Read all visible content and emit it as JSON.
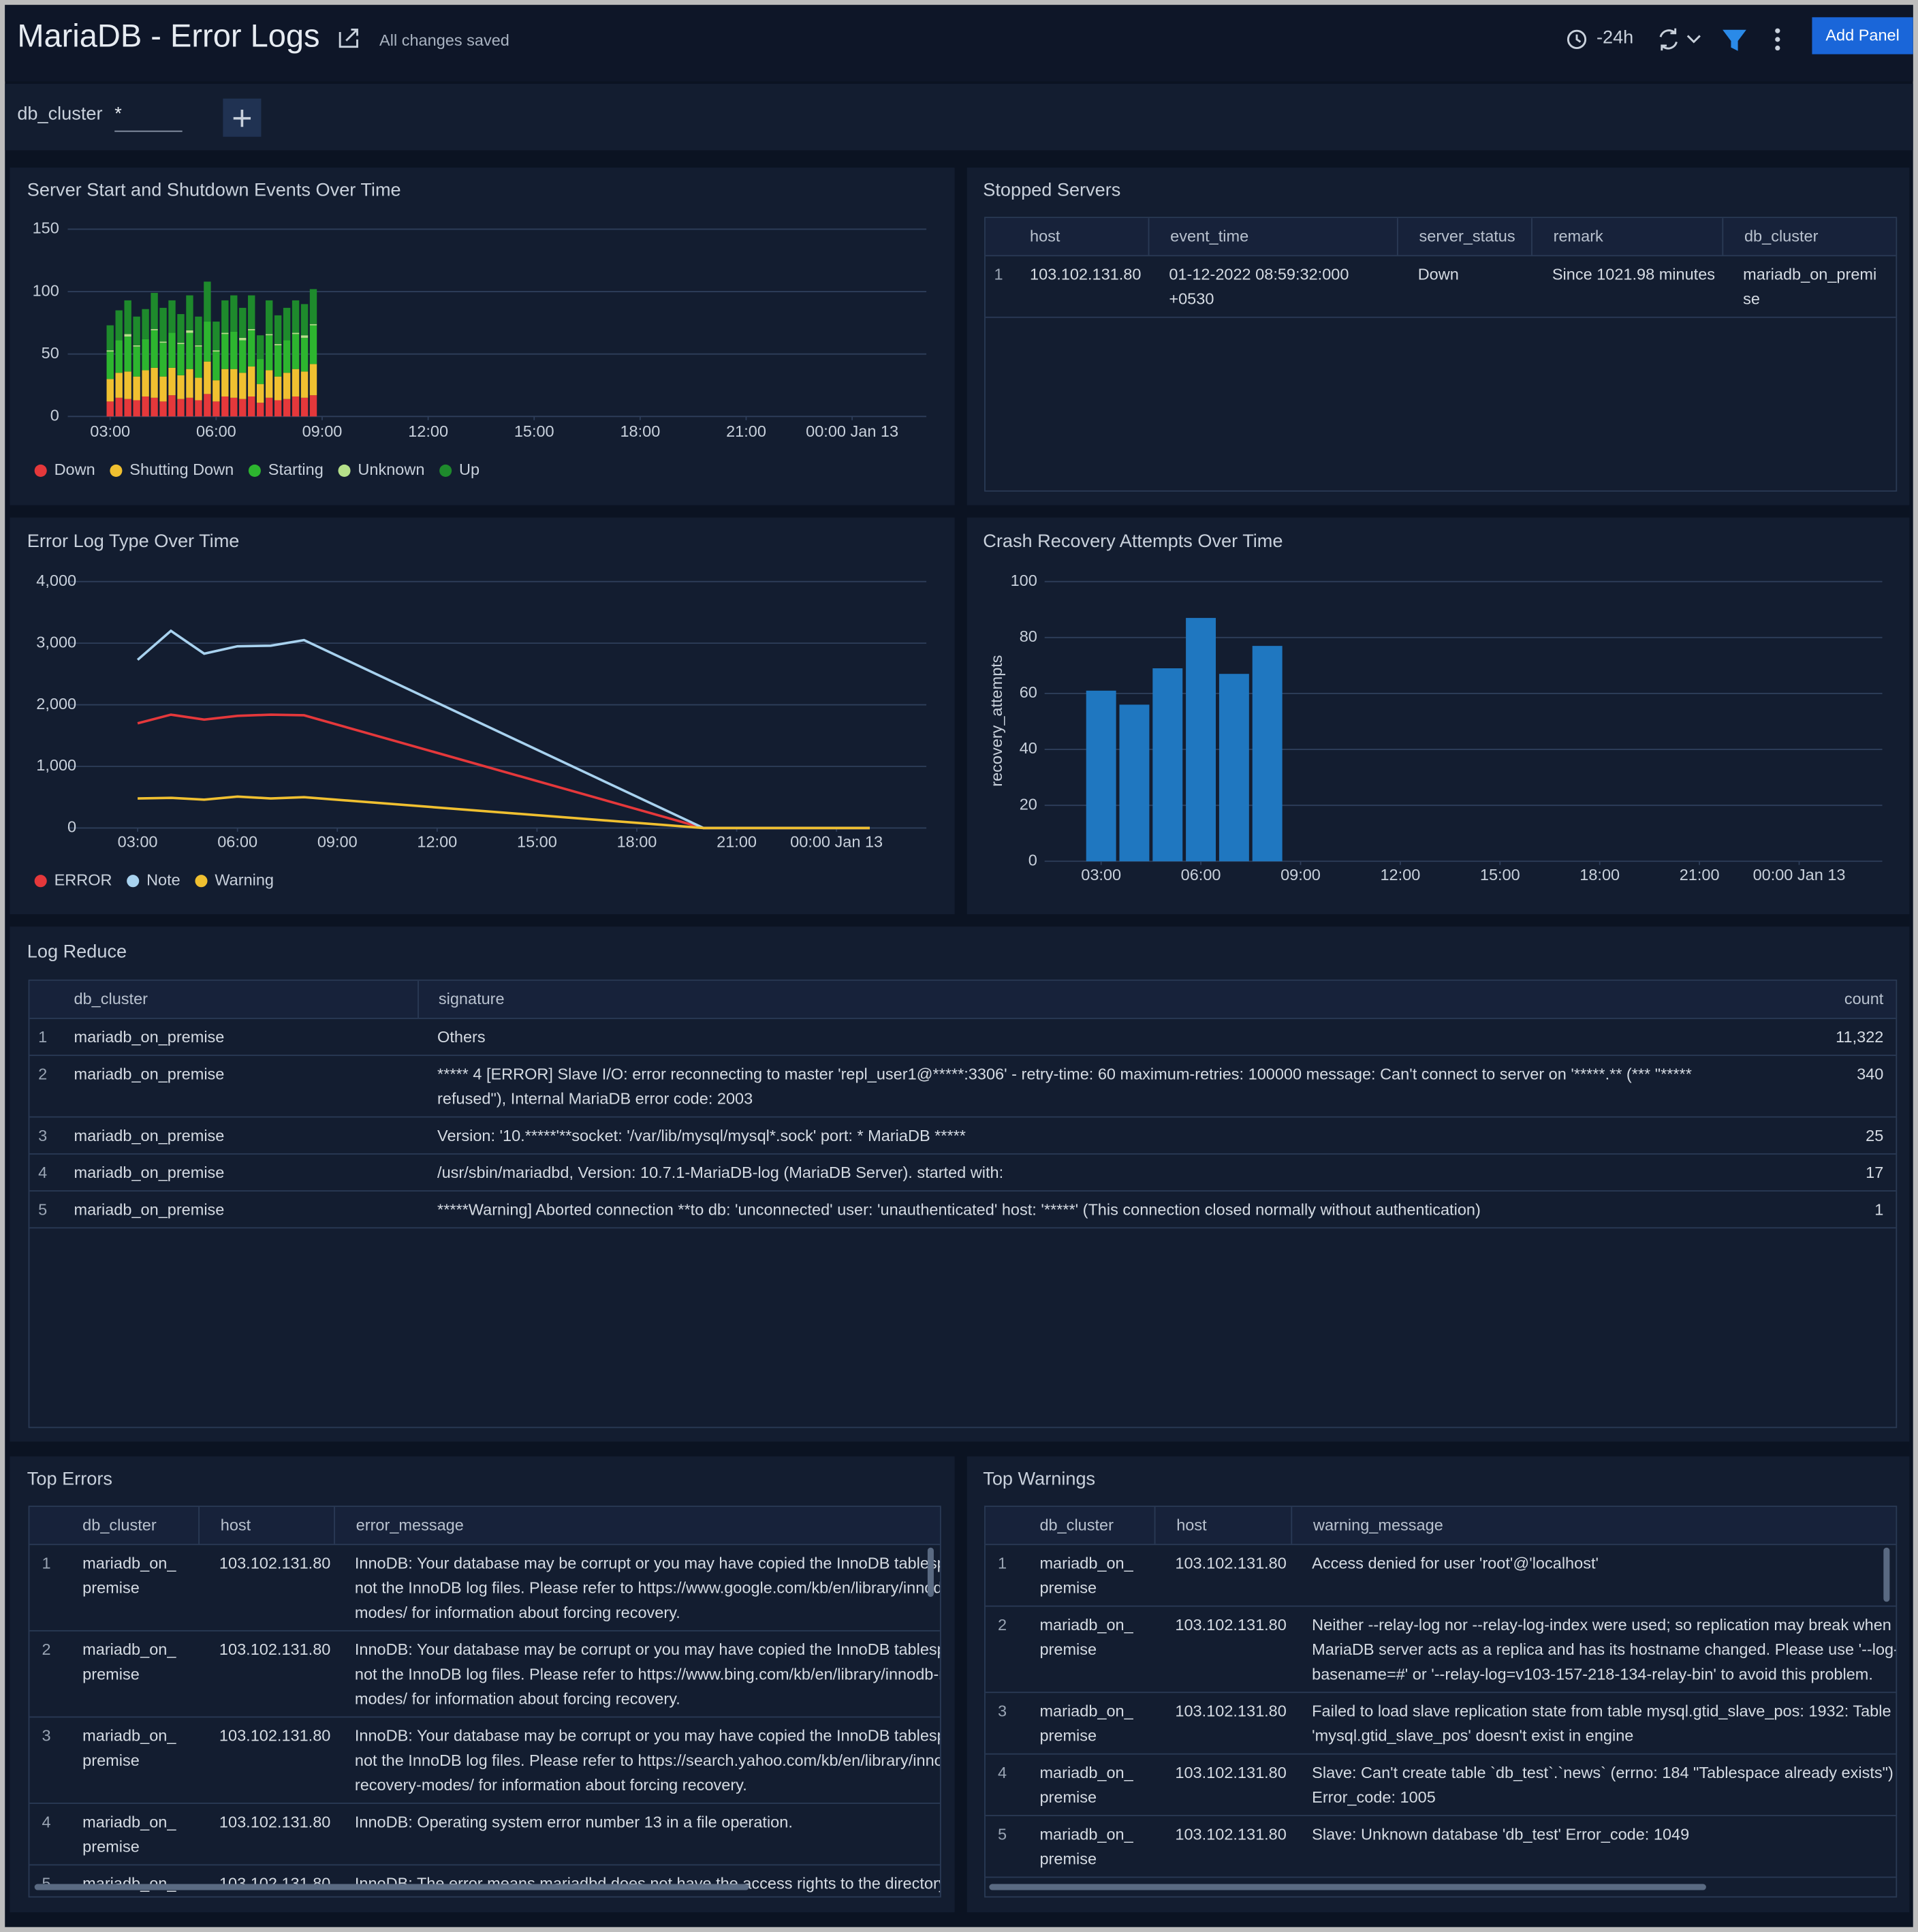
{
  "header": {
    "title": "MariaDB - Error Logs",
    "status": "All changes saved",
    "time_range": "-24h",
    "add_panel": "Add Panel"
  },
  "filters": [
    {
      "name": "db_cluster",
      "value": "*"
    }
  ],
  "panels": [
    {
      "title": "Server Start and Shutdown Events Over Time",
      "chart_data": {
        "type": "bar",
        "stacked": true,
        "grid": true,
        "legend": "bottom",
        "x": [
          3,
          3.25,
          3.5,
          3.75,
          4,
          4.25,
          4.5,
          4.75,
          5,
          5.25,
          5.5,
          5.75,
          6,
          6.25,
          6.5,
          6.75,
          7,
          7.25,
          7.5,
          7.75,
          8,
          8.25,
          8.5,
          8.75
        ],
        "xlim": [
          1.8,
          26.1
        ],
        "xticks": [
          {
            "value": 3,
            "label": "03:00"
          },
          {
            "value": 6,
            "label": "06:00"
          },
          {
            "value": 9,
            "label": "09:00"
          },
          {
            "value": 12,
            "label": "12:00"
          },
          {
            "value": 15,
            "label": "15:00"
          },
          {
            "value": 18,
            "label": "18:00"
          },
          {
            "value": 21,
            "label": "21:00"
          },
          {
            "value": 24,
            "label": "00:00 Jan 13"
          }
        ],
        "ylim": [
          0,
          150
        ],
        "yticks": [
          0,
          50,
          100,
          150
        ],
        "series": [
          {
            "name": "Down",
            "color": "#e5383b",
            "values": [
              12,
              15,
              14,
              13,
              16,
              15,
              12,
              17,
              14,
              15,
              13,
              18,
              12,
              16,
              15,
              14,
              16,
              11,
              15,
              13,
              14,
              16,
              15,
              17
            ]
          },
          {
            "name": "Shutting Down",
            "color": "#f0c030",
            "values": [
              18,
              20,
              22,
              19,
              21,
              24,
              20,
              22,
              19,
              23,
              18,
              26,
              17,
              22,
              23,
              21,
              24,
              15,
              22,
              19,
              21,
              22,
              21,
              25
            ]
          },
          {
            "name": "Starting",
            "color": "#2db52f",
            "values": [
              22,
              26,
              28,
              24,
              25,
              30,
              27,
              28,
              25,
              29,
              25,
              32,
              23,
              28,
              30,
              26,
              29,
              20,
              28,
              25,
              26,
              28,
              27,
              31
            ]
          },
          {
            "name": "Unknown",
            "color": "#b5e08a",
            "values": [
              1,
              0,
              2,
              1,
              0,
              1,
              1,
              0,
              1,
              2,
              1,
              0,
              1,
              1,
              0,
              2,
              1,
              0,
              1,
              1,
              0,
              1,
              2,
              1
            ]
          },
          {
            "name": "Up",
            "color": "#1e8a2c",
            "values": [
              20,
              24,
              27,
              23,
              24,
              29,
              27,
              26,
              23,
              28,
              23,
              32,
              23,
              26,
              29,
              24,
              27,
              19,
              27,
              23,
              26,
              26,
              25,
              28
            ]
          }
        ]
      }
    },
    {
      "title": "Stopped Servers",
      "table": {
        "columns": [
          "host",
          "event_time",
          "server_status",
          "remark",
          "db_cluster"
        ],
        "rows": [
          {
            "n": 1,
            "cells": [
              "103.102.131.80",
              "01-12-2022 08:59:32:000 +0530",
              "Down",
              "Since 1021.98 minutes",
              "mariadb_on_premise"
            ]
          }
        ]
      }
    },
    {
      "title": "Error Log Type Over Time",
      "chart_data": {
        "type": "line",
        "grid": true,
        "legend": "bottom",
        "x": [
          3,
          4,
          5,
          6,
          7,
          8,
          20,
          25
        ],
        "xlim": [
          0.9,
          26.7
        ],
        "xticks": [
          {
            "value": 3,
            "label": "03:00"
          },
          {
            "value": 6,
            "label": "06:00"
          },
          {
            "value": 9,
            "label": "09:00"
          },
          {
            "value": 12,
            "label": "12:00"
          },
          {
            "value": 15,
            "label": "15:00"
          },
          {
            "value": 18,
            "label": "18:00"
          },
          {
            "value": 21,
            "label": "21:00"
          },
          {
            "value": 24,
            "label": "00:00 Jan 13"
          }
        ],
        "ylim": [
          0,
          4000
        ],
        "yticks": [
          0,
          {
            "value": 1000,
            "label": "1,000"
          },
          {
            "value": 2000,
            "label": "2,000"
          },
          {
            "value": 3000,
            "label": "3,000"
          },
          {
            "value": 4000,
            "label": "4,000"
          }
        ],
        "series": [
          {
            "name": "ERROR",
            "color": "#e5383b",
            "values": [
              1700,
              1840,
              1760,
              1820,
              1840,
              1830,
              0,
              0
            ]
          },
          {
            "name": "Note",
            "color": "#a8d2ef",
            "values": [
              2730,
              3200,
              2830,
              2950,
              2960,
              3050,
              0,
              0
            ]
          },
          {
            "name": "Warning",
            "color": "#f0c030",
            "values": [
              480,
              490,
              460,
              510,
              480,
              500,
              0,
              0
            ]
          }
        ]
      }
    },
    {
      "title": "Crash Recovery Attempts Over Time",
      "chart_data": {
        "type": "bar",
        "grid": true,
        "y_label": "recovery_attempts",
        "color": "#1f77c0",
        "x": [
          3,
          4,
          5,
          6,
          7,
          8
        ],
        "values": [
          61,
          56,
          69,
          87,
          67,
          77
        ],
        "xlim": [
          1.3,
          26.5
        ],
        "xticks": [
          {
            "value": 3,
            "label": "03:00"
          },
          {
            "value": 6,
            "label": "06:00"
          },
          {
            "value": 9,
            "label": "09:00"
          },
          {
            "value": 12,
            "label": "12:00"
          },
          {
            "value": 15,
            "label": "15:00"
          },
          {
            "value": 18,
            "label": "18:00"
          },
          {
            "value": 21,
            "label": "21:00"
          },
          {
            "value": 24,
            "label": "00:00 Jan 13"
          }
        ],
        "ylim": [
          0,
          100
        ],
        "yticks": [
          0,
          20,
          40,
          60,
          80,
          100
        ]
      }
    },
    {
      "title": "Log Reduce",
      "table": {
        "columns": [
          "db_cluster",
          "signature",
          "count"
        ],
        "rows": [
          {
            "n": 1,
            "cells": [
              "mariadb_on_premise",
              "Others",
              "11,322"
            ]
          },
          {
            "n": 2,
            "cells": [
              "mariadb_on_premise",
              "***** 4 [ERROR] Slave I/O: error reconnecting to master 'repl_user1@*****:3306' - retry-time: 60 maximum-retries: 100000 message: Can't connect to server on '*****.** (*** \"***** refused\"), Internal MariaDB error code: 2003",
              "340"
            ]
          },
          {
            "n": 3,
            "cells": [
              "mariadb_on_premise",
              "Version: '10.*****'**socket: '/var/lib/mysql/mysql*.sock' port: * MariaDB *****",
              "25"
            ]
          },
          {
            "n": 4,
            "cells": [
              "mariadb_on_premise",
              "/usr/sbin/mariadbd, Version: 10.7.1-MariaDB-log (MariaDB Server). started with:",
              "17"
            ]
          },
          {
            "n": 5,
            "cells": [
              "mariadb_on_premise",
              "*****Warning] Aborted connection **to db: 'unconnected' user: 'unauthenticated' host: '*****' (This connection closed normally without authentication)",
              "1"
            ]
          }
        ]
      }
    },
    {
      "title": "Top Errors",
      "table": {
        "columns": [
          "db_cluster",
          "host",
          "error_message"
        ],
        "rows": [
          {
            "n": 1,
            "cells": [
              "mariadb_on_premise",
              "103.102.131.80",
              "InnoDB: Your database may be corrupt or you may have copied the InnoDB tablespace but not the InnoDB log files. Please refer to https://www.google.com/kb/en/library/innodb-recovery-modes/ for information about forcing recovery."
            ]
          },
          {
            "n": 2,
            "cells": [
              "mariadb_on_premise",
              "103.102.131.80",
              "InnoDB: Your database may be corrupt or you may have copied the InnoDB tablespace but not the InnoDB log files. Please refer to https://www.bing.com/kb/en/library/innodb-recovery-modes/ for information about forcing recovery."
            ]
          },
          {
            "n": 3,
            "cells": [
              "mariadb_on_premise",
              "103.102.131.80",
              "InnoDB: Your database may be corrupt or you may have copied the InnoDB tablespace but not the InnoDB log files. Please refer to https://search.yahoo.com/kb/en/library/innodb-recovery-modes/ for information about forcing recovery."
            ]
          },
          {
            "n": 4,
            "cells": [
              "mariadb_on_premise",
              "103.102.131.80",
              "InnoDB: Operating system error number 13 in a file operation."
            ]
          },
          {
            "n": 5,
            "cells": [
              "mariadb_on_premise",
              "103.102.131.80",
              "InnoDB: The error means mariadbd does not have the access rights to the directory."
            ]
          }
        ]
      }
    },
    {
      "title": "Top Warnings",
      "table": {
        "columns": [
          "db_cluster",
          "host",
          "warning_message"
        ],
        "rows": [
          {
            "n": 1,
            "cells": [
              "mariadb_on_premise",
              "103.102.131.80",
              "Access denied for user 'root'@'localhost'"
            ]
          },
          {
            "n": 2,
            "cells": [
              "mariadb_on_premise",
              "103.102.131.80",
              "Neither --relay-log nor --relay-log-index were used; so replication may break when this MariaDB server acts as a replica and has its hostname changed. Please use '--log-basename=#' or '--relay-log=v103-157-218-134-relay-bin' to avoid this problem."
            ]
          },
          {
            "n": 3,
            "cells": [
              "mariadb_on_premise",
              "103.102.131.80",
              "Failed to load slave replication state from table mysql.gtid_slave_pos: 1932: Table 'mysql.gtid_slave_pos' doesn't exist in engine"
            ]
          },
          {
            "n": 4,
            "cells": [
              "mariadb_on_premise",
              "103.102.131.80",
              "Slave: Can't create table `db_test`.`news` (errno: 184 \"Tablespace already exists\") Error_code: 1005"
            ]
          },
          {
            "n": 5,
            "cells": [
              "mariadb_on_premise",
              "103.102.131.80",
              "Slave: Unknown database 'db_test' Error_code: 1049"
            ]
          }
        ]
      }
    }
  ]
}
